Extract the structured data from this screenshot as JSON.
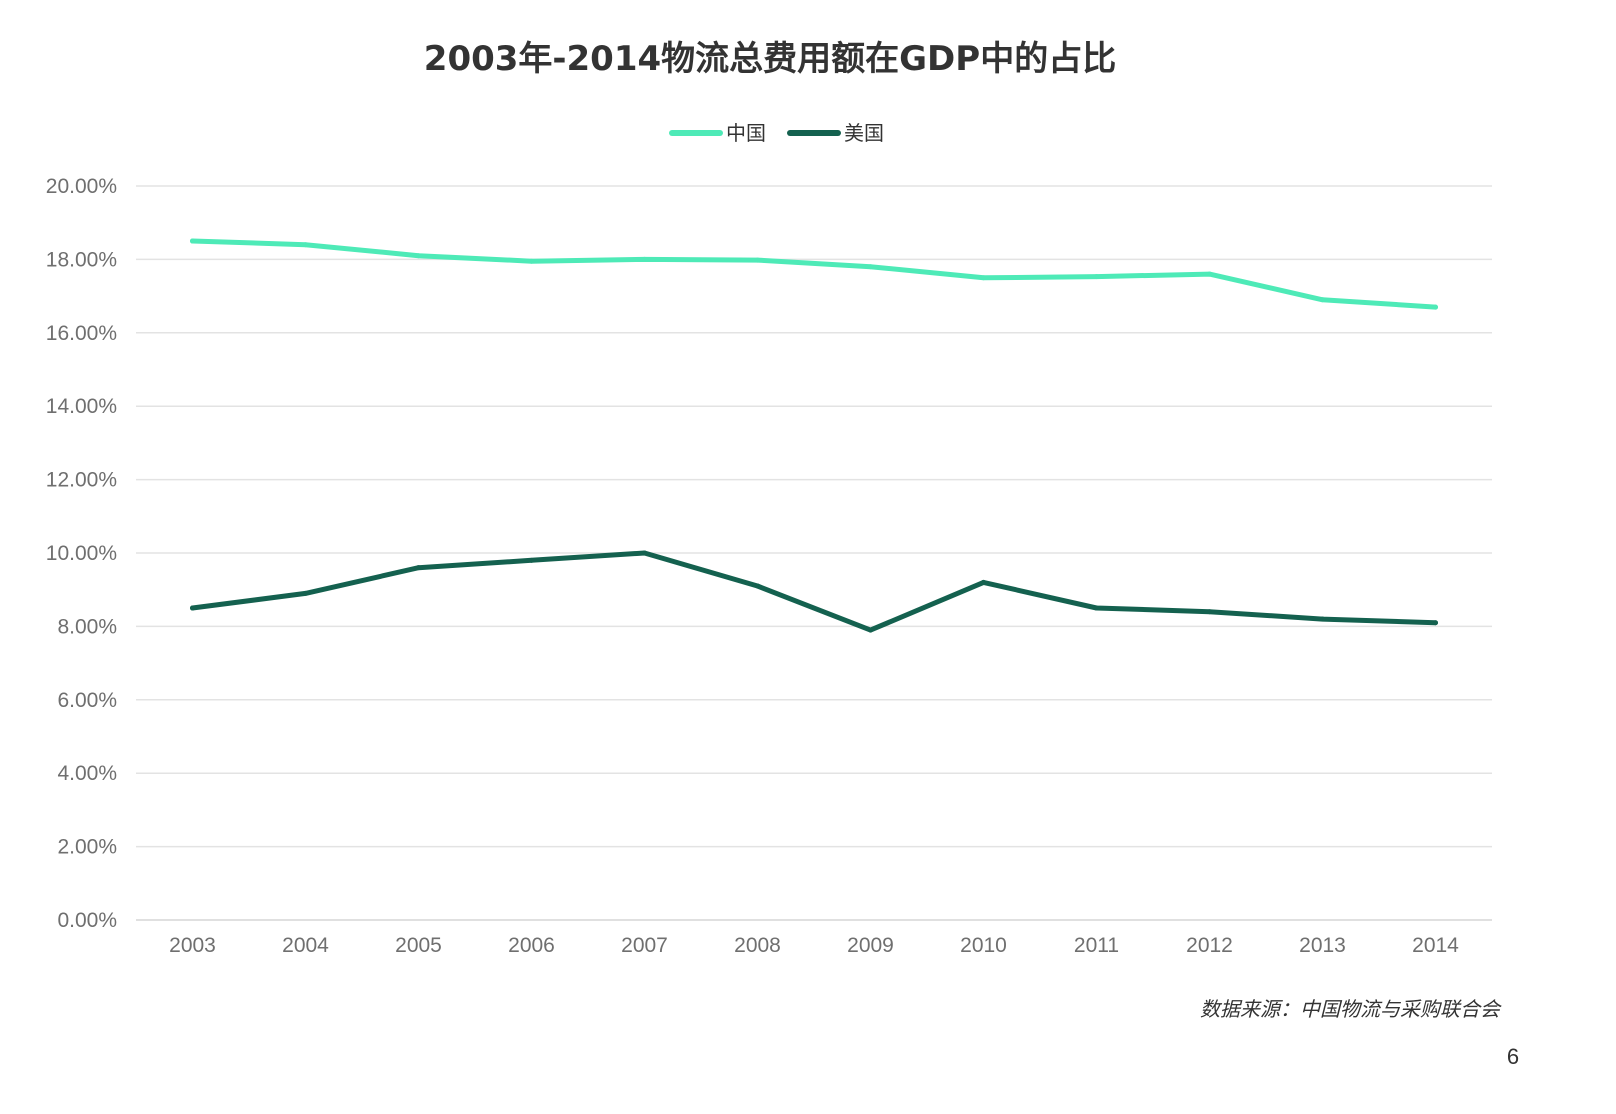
{
  "chart_data": {
    "type": "line",
    "title": "2003年-2014物流总费用额在GDP中的占比",
    "categories": [
      "2003",
      "2004",
      "2005",
      "2006",
      "2007",
      "2008",
      "2009",
      "2010",
      "2011",
      "2012",
      "2013",
      "2014"
    ],
    "series": [
      {
        "name": "中国",
        "color": "#4eeab7",
        "values": [
          18.5,
          18.4,
          18.1,
          17.95,
          18.0,
          17.98,
          17.8,
          17.5,
          17.53,
          17.6,
          16.9,
          16.7
        ]
      },
      {
        "name": "美国",
        "color": "#14614f",
        "values": [
          8.5,
          8.9,
          9.6,
          9.8,
          10.0,
          9.1,
          7.9,
          9.2,
          8.5,
          8.4,
          8.2,
          8.1
        ]
      }
    ],
    "ylim": [
      0,
      20
    ],
    "yticks": [
      0,
      2,
      4,
      6,
      8,
      10,
      12,
      14,
      16,
      18,
      20
    ],
    "ytick_labels": [
      "0.00%",
      "2.00%",
      "4.00%",
      "6.00%",
      "8.00%",
      "10.00%",
      "12.00%",
      "14.00%",
      "16.00%",
      "18.00%",
      "20.00%"
    ],
    "xlabel": "",
    "ylabel": "",
    "grid": true,
    "legend_position": "top-center"
  },
  "source": "数据来源：中国物流与采购联合会",
  "page_number": "6"
}
